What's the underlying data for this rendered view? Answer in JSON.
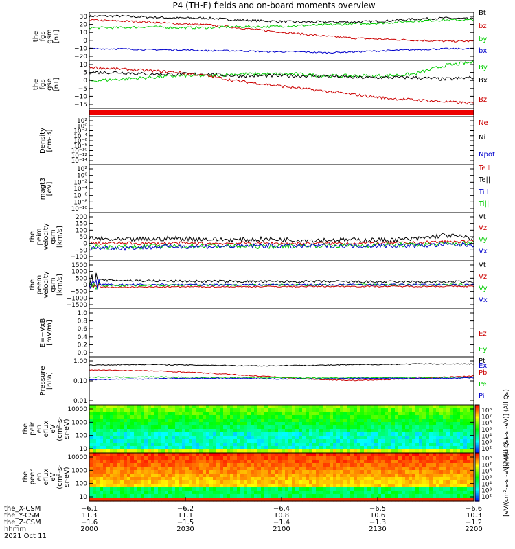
{
  "title": "P4 (TH-E) fields and on-board moments overview",
  "chart_data": [
    {
      "type": "line",
      "id": "fgs_gsm",
      "ylabel": [
        "the",
        "fgs",
        "gsm",
        "[nT]"
      ],
      "yticks": [
        "30",
        "20",
        "10",
        "0",
        "−10",
        "−20"
      ],
      "ylim": [
        -20,
        30
      ],
      "scale": "linear",
      "series": [
        {
          "name": "Bt",
          "color": "#000000",
          "trend": [
            26,
            26,
            25,
            24,
            24,
            22,
            21,
            20,
            20,
            20,
            21,
            23,
            24,
            23
          ],
          "noise": 1.2
        },
        {
          "name": "bz",
          "color": "#cc0000",
          "trend": [
            22,
            21,
            20,
            18,
            17,
            14,
            11,
            8,
            5,
            3,
            2,
            1,
            0,
            0
          ],
          "noise": 1.0
        },
        {
          "name": "by",
          "color": "#00cc00",
          "trend": [
            14,
            14,
            15,
            14,
            14,
            15,
            15,
            16,
            17,
            18,
            19,
            21,
            22,
            22
          ],
          "noise": 1.2
        },
        {
          "name": "bx",
          "color": "#0000cc",
          "trend": [
            -8,
            -8,
            -9,
            -9,
            -10,
            -10,
            -11,
            -11,
            -12,
            -11,
            -10,
            -9,
            -8,
            -8
          ],
          "noise": 0.8
        }
      ]
    },
    {
      "type": "line",
      "id": "fgs_gse",
      "ylabel": [
        "the",
        "fgs",
        "gse",
        "[nT]"
      ],
      "yticks": [
        "10",
        "5",
        "0",
        "−5",
        "−10",
        "−15"
      ],
      "ylim": [
        -17,
        11
      ],
      "scale": "linear",
      "series": [
        {
          "name": "By",
          "color": "#00cc00",
          "trend": [
            -1,
            0,
            1,
            2,
            2,
            3,
            3,
            3,
            2,
            2,
            2,
            3,
            8,
            10
          ],
          "noise": 1.0
        },
        {
          "name": "Bx",
          "color": "#000000",
          "trend": [
            4,
            4,
            3,
            3,
            3,
            2,
            2,
            2,
            2,
            1,
            1,
            1,
            0,
            1
          ],
          "noise": 1.0
        },
        {
          "name": "Bz",
          "color": "#cc0000",
          "trend": [
            7,
            6,
            5,
            4,
            2,
            -1,
            -3,
            -5,
            -7,
            -9,
            -11,
            -12,
            -13,
            -14
          ],
          "noise": 0.8
        }
      ]
    },
    {
      "type": "bar",
      "id": "flag",
      "color": "#ee0000"
    },
    {
      "type": "line",
      "id": "density",
      "ylabel": [
        "Density",
        "[cm-3]"
      ],
      "yticks": [
        "10²",
        "10⁰",
        "10⁻²",
        "10⁻⁴",
        "10⁻⁶",
        "10⁻⁸",
        "10⁻¹⁰",
        "10⁻¹²",
        "10⁻¹⁴"
      ],
      "ylim": [
        -14,
        2
      ],
      "scale": "log",
      "series": [
        {
          "name": "Ne",
          "color": "#cc0000",
          "trend": [
            2,
            2
          ],
          "noise": 0
        },
        {
          "name": "Ni",
          "color": "#000000",
          "trend": [
            2,
            2
          ],
          "noise": 0
        },
        {
          "name": "Npot",
          "color": "#0000cc",
          "trend": [
            -14,
            -14
          ],
          "noise": 0
        }
      ]
    },
    {
      "type": "line",
      "id": "temp",
      "ylabel": [
        "magt3",
        "[eV]"
      ],
      "yticks": [
        "10²",
        "10⁰",
        "10⁻²",
        "10⁻⁴",
        "10⁻⁶",
        "10⁻⁸",
        "10⁻¹⁰"
      ],
      "ylim": [
        -10,
        2
      ],
      "scale": "log",
      "series": [
        {
          "name": "Te⊥",
          "color": "#cc0000",
          "trend": [
            2,
            2
          ],
          "noise": 0
        },
        {
          "name": "Te||",
          "color": "#000000",
          "trend": [
            2,
            2
          ],
          "noise": 0
        },
        {
          "name": "Ti⊥",
          "color": "#0000cc",
          "trend": [
            2,
            2
          ],
          "noise": 0
        },
        {
          "name": "Ti||",
          "color": "#00cc00",
          "trend": [
            2,
            2
          ],
          "noise": 0
        }
      ]
    },
    {
      "type": "line",
      "id": "peim_vel",
      "ylabel": [
        "the",
        "peim",
        "velocity",
        "gsm",
        "[km/s]"
      ],
      "yticks": [
        "200",
        "150",
        "100",
        "50",
        "0",
        "−50",
        "−100"
      ],
      "ylim": [
        -100,
        200
      ],
      "scale": "linear",
      "series": [
        {
          "name": "Vt",
          "color": "#000000",
          "trend": [
            40,
            30,
            35,
            40,
            35,
            30,
            35,
            30,
            30,
            30,
            30,
            35,
            60,
            40
          ],
          "noise": 15
        },
        {
          "name": "Vz",
          "color": "#cc0000",
          "trend": [
            10,
            10,
            8,
            10,
            8,
            10,
            10,
            8,
            10,
            10,
            10,
            12,
            20,
            20
          ],
          "noise": 10
        },
        {
          "name": "Vy",
          "color": "#00cc00",
          "trend": [
            -10,
            -15,
            -10,
            -10,
            -5,
            -10,
            -10,
            -5,
            -5,
            -5,
            0,
            0,
            5,
            10
          ],
          "noise": 15
        },
        {
          "name": "Vx",
          "color": "#0000cc",
          "trend": [
            -20,
            -20,
            -15,
            -10,
            -10,
            -10,
            -5,
            -10,
            -5,
            -5,
            -5,
            -5,
            0,
            0
          ],
          "noise": 15
        }
      ]
    },
    {
      "type": "line",
      "id": "peem_vel",
      "ylabel": [
        "the",
        "peem",
        "velocity",
        "gsm",
        "[km/s]"
      ],
      "yticks": [
        "1500",
        "1000",
        "500",
        "0",
        "−500",
        "−1000",
        "−1500"
      ],
      "ylim": [
        -1500,
        1500
      ],
      "scale": "linear",
      "series": [
        {
          "name": "Vt",
          "color": "#000000",
          "trend": [
            300,
            280,
            250,
            230,
            220,
            210,
            200,
            200,
            200,
            190,
            180,
            180,
            180,
            180
          ],
          "noise": 80
        },
        {
          "name": "Vz",
          "color": "#cc0000",
          "trend": [
            -150,
            -150,
            -140,
            -130,
            -120,
            -120,
            -110,
            -110,
            -100,
            -100,
            -100,
            -100,
            -100,
            -100
          ],
          "noise": 40
        },
        {
          "name": "Vy",
          "color": "#00cc00",
          "trend": [
            -50,
            -40,
            -30,
            -30,
            -20,
            -20,
            -10,
            -10,
            -10,
            0,
            0,
            0,
            0,
            0
          ],
          "noise": 60
        },
        {
          "name": "Vx",
          "color": "#0000cc",
          "trend": [
            0,
            0,
            0,
            0,
            0,
            0,
            0,
            0,
            0,
            0,
            0,
            0,
            0,
            0
          ],
          "noise": 60
        }
      ]
    },
    {
      "type": "line",
      "id": "efield",
      "ylabel": [
        "E=−VxB",
        "[mV/m]"
      ],
      "yticks": [
        "1.0",
        "0.8",
        "0.6",
        "0.4",
        "0.2",
        "0.0"
      ],
      "ylim": [
        0,
        1
      ],
      "scale": "linear",
      "series": [
        {
          "name": "Ez",
          "color": "#cc0000",
          "trend": [],
          "noise": 0
        },
        {
          "name": "Ey",
          "color": "#00cc00",
          "trend": [],
          "noise": 0
        },
        {
          "name": "Ex",
          "color": "#0000cc",
          "trend": [],
          "noise": 0
        }
      ]
    },
    {
      "type": "line",
      "id": "pressure",
      "ylabel": [
        "Pressure",
        "[nPa]"
      ],
      "yticks": [
        "1.00",
        "0.10",
        "0.01"
      ],
      "ylim": [
        -2,
        0
      ],
      "scale": "log",
      "series": [
        {
          "name": "Pt",
          "color": "#000000",
          "trend": [
            -0.35,
            -0.33,
            -0.32,
            -0.34,
            -0.35,
            -0.37,
            -0.38,
            -0.36,
            -0.35,
            -0.33,
            -0.32,
            -0.3,
            -0.3,
            -0.3
          ],
          "noise": 0.02
        },
        {
          "name": "Pb",
          "color": "#cc0000",
          "trend": [
            -0.55,
            -0.56,
            -0.58,
            -0.62,
            -0.68,
            -0.75,
            -0.82,
            -0.9,
            -0.95,
            -0.98,
            -0.95,
            -0.9,
            -0.85,
            -0.8
          ],
          "noise": 0.02
        },
        {
          "name": "Pe",
          "color": "#00cc00",
          "trend": [
            -0.85,
            -0.85,
            -0.84,
            -0.85,
            -0.86,
            -0.86,
            -0.87,
            -0.88,
            -0.88,
            -0.88,
            -0.87,
            -0.86,
            -0.86,
            -0.85
          ],
          "noise": 0.02
        },
        {
          "name": "Pi",
          "color": "#0000cc",
          "trend": [
            -0.95,
            -0.93,
            -0.92,
            -0.9,
            -0.9,
            -0.9,
            -0.92,
            -0.92,
            -0.92,
            -0.9,
            -0.9,
            -0.9,
            -0.9,
            -0.88
          ],
          "noise": 0.02
        }
      ]
    },
    {
      "type": "heatmap",
      "id": "peir",
      "ylabel": [
        "the",
        "peir",
        "en",
        "eflux",
        "eV",
        "(cm²-s-",
        "sr-eV)"
      ],
      "yticks": [
        "10000",
        "1000",
        "100",
        "10"
      ],
      "ylim": [
        1,
        4.2
      ],
      "scale": "log"
    },
    {
      "type": "heatmap",
      "id": "peer",
      "ylabel": [
        "the",
        "peer",
        "en",
        "eflux",
        "eV",
        "(cm²-s-",
        "sr-eV)"
      ],
      "yticks": [
        "10000",
        "1000",
        "100",
        "10"
      ],
      "ylim": [
        1,
        4.2
      ],
      "scale": "log"
    }
  ],
  "colorbars": [
    {
      "label": "[eV/(cm²-s-sr-eV)] (All Qs)",
      "ticks": [
        "10⁸",
        "10⁷",
        "10⁶",
        "10⁵",
        "10⁴",
        "10³",
        "10²"
      ]
    },
    {
      "label": "[eV/(cm²-s-sr-eV)] (All Qs)",
      "ticks": [
        "10⁸",
        "10⁷",
        "10⁶",
        "10⁵",
        "10⁴",
        "10³",
        "10²"
      ]
    }
  ],
  "xaxis": {
    "row_labels": [
      "the_X-CSM",
      "the_Y-CSM",
      "the_Z-CSM",
      "hhmm",
      "2021 Oct 11"
    ],
    "ticks": [
      {
        "t": 0,
        "lines": [
          "−6.1",
          "11.3",
          "−1.6",
          "2000"
        ]
      },
      {
        "t": 30,
        "lines": [
          "−6.2",
          "11.1",
          "−1.5",
          "2030"
        ]
      },
      {
        "t": 60,
        "lines": [
          "−6.4",
          "10.8",
          "−1.4",
          "2100"
        ]
      },
      {
        "t": 90,
        "lines": [
          "−6.5",
          "10.6",
          "−1.3",
          "2130"
        ]
      },
      {
        "t": 120,
        "lines": [
          "−6.6",
          "10.3",
          "−1.2",
          "2200"
        ]
      }
    ],
    "range": [
      0,
      120
    ]
  }
}
